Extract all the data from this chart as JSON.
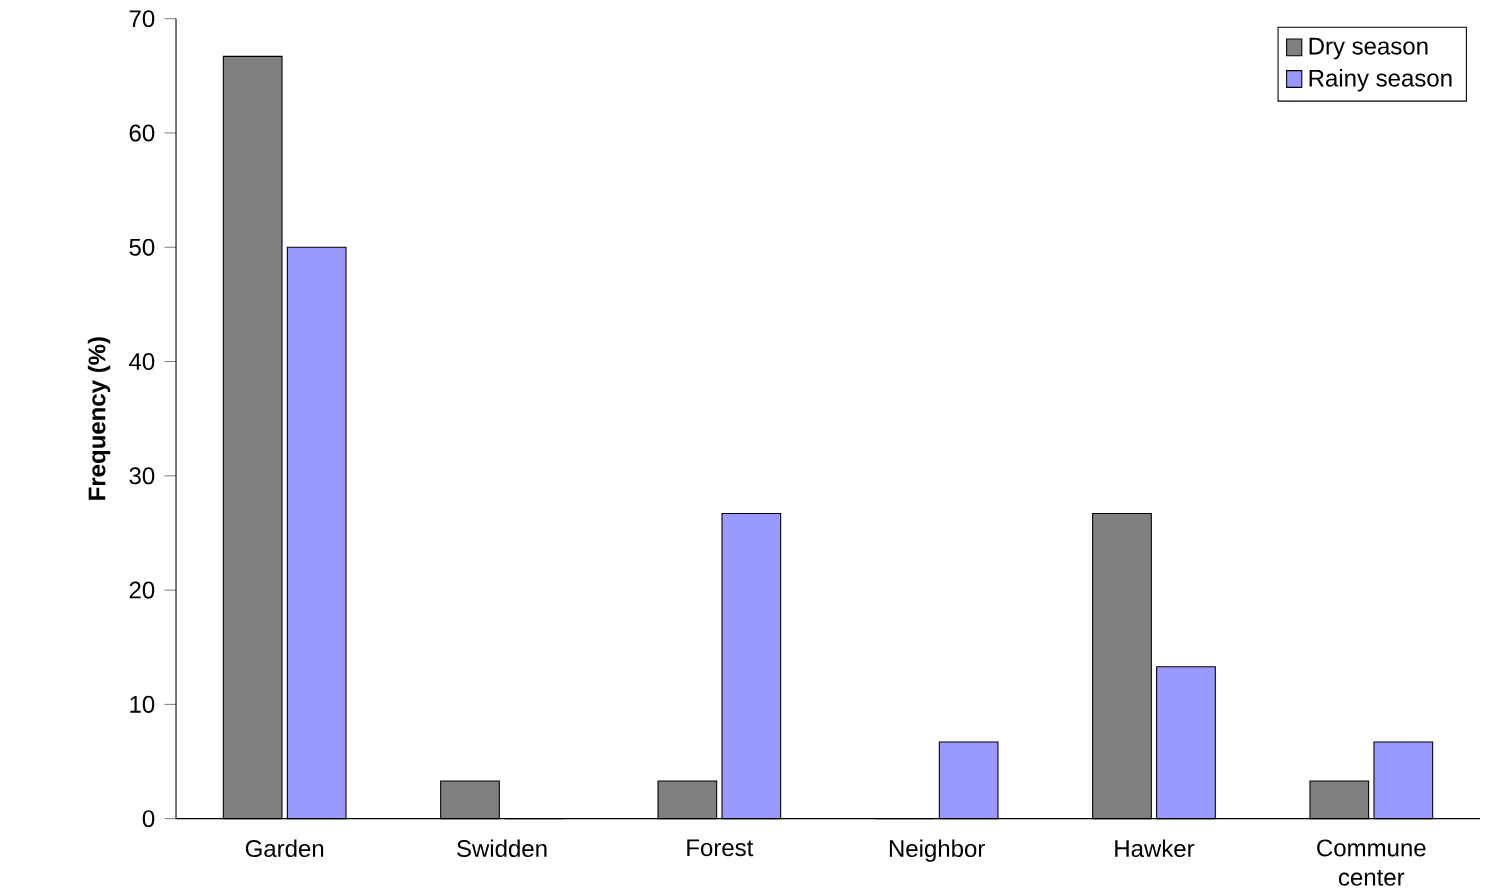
{
  "chart_data": {
    "type": "bar",
    "ylabel": "Frequency (%)",
    "categories": [
      "Garden",
      "Swidden",
      "Forest",
      "Neighbor",
      "Hawker",
      "Commune center"
    ],
    "series": [
      {
        "name": "Dry season",
        "color": "#808080",
        "values": [
          66.7,
          3.3,
          3.3,
          0,
          26.7,
          3.3
        ]
      },
      {
        "name": "Rainy season",
        "color": "#9999ff",
        "values": [
          50,
          0,
          26.7,
          6.7,
          13.3,
          6.7
        ]
      }
    ],
    "ylim": [
      0,
      70
    ],
    "yticks": [
      0,
      10,
      20,
      30,
      40,
      50,
      60,
      70
    ],
    "grid": false,
    "legend": "top right"
  }
}
